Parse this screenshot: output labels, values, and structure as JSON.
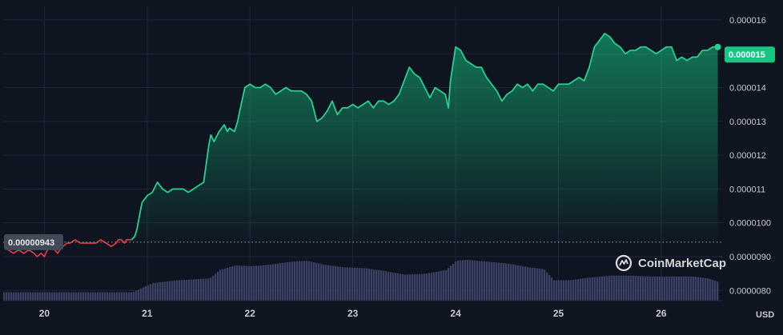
{
  "watermark": {
    "text": "CoinMarketCap",
    "icon": "coinmarketcap-logo-icon"
  },
  "unit_label": "USD",
  "current_price_label": "0.000015",
  "reference_price_label": "0.00000943",
  "colors": {
    "background": "#0f1421",
    "up_line": "#27d08e",
    "down_line": "#ea3943",
    "volume": "#384063",
    "badge_bg": "#16c784",
    "ref_badge_bg": "#434a57",
    "grid": "#1f2636",
    "tick_text": "#c5cad3"
  },
  "chart_data": {
    "type": "area",
    "title": "",
    "xlabel": "",
    "ylabel": "USD",
    "x_ticks": [
      "20",
      "21",
      "22",
      "23",
      "24",
      "25",
      "26"
    ],
    "y_ticks": [
      "0.000016",
      "0.000015",
      "0.000014",
      "0.000013",
      "0.000012",
      "0.000011",
      "0.0000100",
      "0.0000090",
      "0.0000080"
    ],
    "ylim": [
      7.7e-06,
      1.64e-05
    ],
    "xlim": [
      19.6,
      26.6
    ],
    "reference_price": 9.43e-06,
    "current_price": 1.5e-05,
    "grid": true,
    "series": [
      {
        "color_key": "price",
        "x": [
          19.62,
          19.65,
          19.7,
          19.75,
          19.8,
          19.85,
          19.9,
          19.93,
          19.97,
          20.0,
          20.03,
          20.07,
          20.1,
          20.13,
          20.15,
          20.18,
          20.22,
          20.25,
          20.3,
          20.35,
          20.4,
          20.45,
          20.5,
          20.55,
          20.6,
          20.65,
          20.7,
          20.72,
          20.75,
          20.78,
          20.8,
          20.85,
          20.88,
          20.9,
          20.95,
          21.0,
          21.05,
          21.1,
          21.15,
          21.2,
          21.25,
          21.3,
          21.35,
          21.4,
          21.45,
          21.5,
          21.55,
          21.6,
          21.62,
          21.65,
          21.7,
          21.75,
          21.78,
          21.8,
          21.85,
          21.88,
          21.9,
          21.95,
          22.0,
          22.05,
          22.1,
          22.15,
          22.2,
          22.25,
          22.3,
          22.35,
          22.4,
          22.45,
          22.5,
          22.55,
          22.6,
          22.65,
          22.7,
          22.75,
          22.8,
          22.85,
          22.9,
          22.95,
          23.0,
          23.05,
          23.1,
          23.15,
          23.2,
          23.25,
          23.3,
          23.35,
          23.4,
          23.45,
          23.5,
          23.55,
          23.6,
          23.65,
          23.7,
          23.75,
          23.8,
          23.85,
          23.9,
          23.93,
          23.95,
          24.0,
          24.05,
          24.1,
          24.15,
          24.2,
          24.25,
          24.3,
          24.35,
          24.4,
          24.45,
          24.5,
          24.55,
          24.6,
          24.65,
          24.7,
          24.75,
          24.8,
          24.85,
          24.9,
          24.95,
          25.0,
          25.05,
          25.1,
          25.15,
          25.2,
          25.25,
          25.3,
          25.35,
          25.4,
          25.45,
          25.5,
          25.55,
          25.6,
          25.65,
          25.7,
          25.75,
          25.8,
          25.85,
          25.9,
          25.95,
          26.0,
          26.05,
          26.1,
          26.15,
          26.2,
          26.25,
          26.3,
          26.35,
          26.4,
          26.45,
          26.5,
          26.55
        ],
        "y": [
          9.3e-06,
          9.2e-06,
          9.1e-06,
          9.2e-06,
          9.1e-06,
          9.2e-06,
          9.1e-06,
          9e-06,
          9.1e-06,
          9e-06,
          9.2e-06,
          9.3e-06,
          9.2e-06,
          9.1e-06,
          9.2e-06,
          9.3e-06,
          9.4e-06,
          9.4e-06,
          9.5e-06,
          9.4e-06,
          9.4e-06,
          9.4e-06,
          9.4e-06,
          9.5e-06,
          9.4e-06,
          9.3e-06,
          9.4e-06,
          9.5e-06,
          9.5e-06,
          9.4e-06,
          9.5e-06,
          9.5e-06,
          9.6e-06,
          9.8e-06,
          1.06e-05,
          1.08e-05,
          1.09e-05,
          1.12e-05,
          1.1e-05,
          1.09e-05,
          1.1e-05,
          1.1e-05,
          1.1e-05,
          1.09e-05,
          1.1e-05,
          1.11e-05,
          1.12e-05,
          1.23e-05,
          1.26e-05,
          1.24e-05,
          1.27e-05,
          1.29e-05,
          1.27e-05,
          1.28e-05,
          1.27e-05,
          1.3e-05,
          1.33e-05,
          1.4e-05,
          1.41e-05,
          1.4e-05,
          1.4e-05,
          1.41e-05,
          1.4e-05,
          1.38e-05,
          1.39e-05,
          1.4e-05,
          1.39e-05,
          1.39e-05,
          1.39e-05,
          1.38e-05,
          1.36e-05,
          1.3e-05,
          1.31e-05,
          1.33e-05,
          1.36e-05,
          1.32e-05,
          1.34e-05,
          1.34e-05,
          1.35e-05,
          1.34e-05,
          1.35e-05,
          1.36e-05,
          1.34e-05,
          1.36e-05,
          1.36e-05,
          1.35e-05,
          1.36e-05,
          1.38e-05,
          1.42e-05,
          1.46e-05,
          1.44e-05,
          1.43e-05,
          1.4e-05,
          1.37e-05,
          1.4e-05,
          1.39e-05,
          1.38e-05,
          1.34e-05,
          1.42e-05,
          1.52e-05,
          1.51e-05,
          1.48e-05,
          1.47e-05,
          1.46e-05,
          1.46e-05,
          1.43e-05,
          1.41e-05,
          1.39e-05,
          1.36e-05,
          1.38e-05,
          1.39e-05,
          1.41e-05,
          1.4e-05,
          1.41e-05,
          1.39e-05,
          1.41e-05,
          1.41e-05,
          1.4e-05,
          1.39e-05,
          1.41e-05,
          1.41e-05,
          1.41e-05,
          1.42e-05,
          1.43e-05,
          1.42e-05,
          1.46e-05,
          1.52e-05,
          1.54e-05,
          1.56e-05,
          1.55e-05,
          1.53e-05,
          1.52e-05,
          1.5e-05,
          1.51e-05,
          1.51e-05,
          1.52e-05,
          1.52e-05,
          1.51e-05,
          1.5e-05,
          1.51e-05,
          1.52e-05,
          1.52e-05,
          1.48e-05,
          1.49e-05,
          1.48e-05,
          1.49e-05,
          1.49e-05,
          1.51e-05,
          1.51e-05,
          1.52e-05,
          1.52e-05
        ]
      }
    ],
    "volume": {
      "relative": true,
      "x": [
        19.6,
        20.0,
        20.5,
        20.85,
        20.95,
        21.05,
        21.3,
        21.6,
        21.7,
        21.85,
        22.0,
        22.2,
        22.4,
        22.55,
        22.7,
        22.9,
        23.1,
        23.3,
        23.5,
        23.7,
        23.9,
        24.0,
        24.1,
        24.3,
        24.5,
        24.7,
        24.85,
        24.95,
        25.1,
        25.3,
        25.5,
        25.7,
        25.9,
        26.1,
        26.3,
        26.45,
        26.55
      ],
      "values": [
        0.18,
        0.18,
        0.18,
        0.18,
        0.28,
        0.38,
        0.44,
        0.48,
        0.66,
        0.76,
        0.74,
        0.78,
        0.84,
        0.86,
        0.78,
        0.72,
        0.7,
        0.64,
        0.56,
        0.58,
        0.66,
        0.86,
        0.88,
        0.84,
        0.8,
        0.72,
        0.68,
        0.44,
        0.44,
        0.5,
        0.54,
        0.54,
        0.52,
        0.52,
        0.52,
        0.48,
        0.4
      ]
    }
  }
}
